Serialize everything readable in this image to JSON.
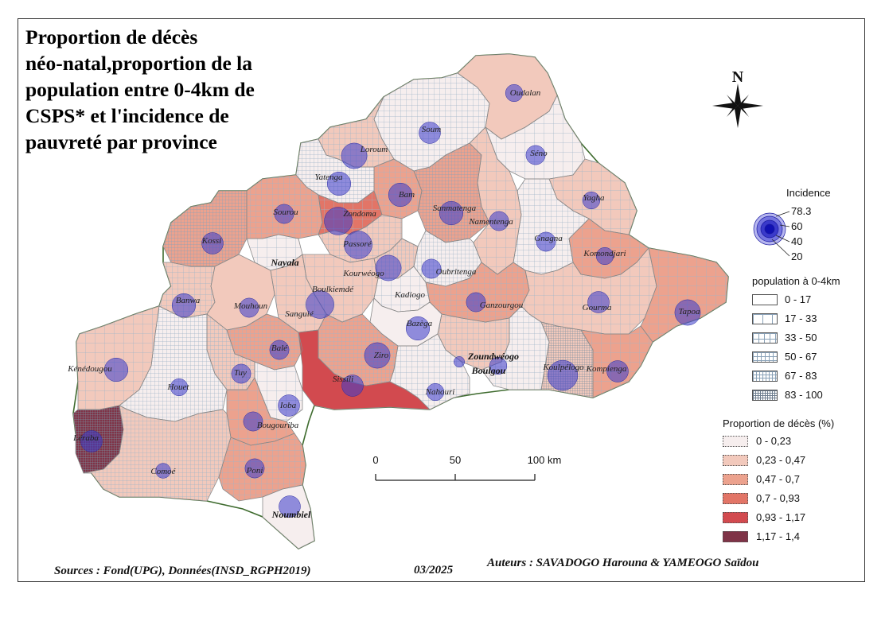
{
  "title": "Proportion de décès\nnéo-natal,proportion de la\npopulation entre 0-4km de\nCSPS* et l'incidence de\npauvreté par province",
  "north_label": "N",
  "legend": {
    "incidence": {
      "title": "Incidence",
      "values": [
        "78.3",
        "60",
        "40",
        "20"
      ],
      "color": "#3a3acc"
    },
    "population": {
      "title": "population à 0-4km",
      "classes": [
        {
          "label": "0 - 17",
          "grid": 0
        },
        {
          "label": "17 - 33",
          "grid": 1
        },
        {
          "label": "33 - 50",
          "grid": 2
        },
        {
          "label": "50 - 67",
          "grid": 3
        },
        {
          "label": "67 - 83",
          "grid": 4
        },
        {
          "label": "83 - 100",
          "grid": 5
        }
      ]
    },
    "deces": {
      "title": "Proportion de décès (%)",
      "classes": [
        {
          "label": "0 - 0,23",
          "color": "#f6eeee"
        },
        {
          "label": "0,23 - 0,47",
          "color": "#f2c9bc"
        },
        {
          "label": "0,47 - 0,7",
          "color": "#eca28e"
        },
        {
          "label": "0,7 - 0,93",
          "color": "#e27567"
        },
        {
          "label": "0,93 - 1,17",
          "color": "#d24a4f"
        },
        {
          "label": "1,17 - 1,4",
          "color": "#7f3347"
        }
      ]
    }
  },
  "scale": {
    "labels": [
      "0",
      "50",
      "100 km"
    ]
  },
  "footer": {
    "sources": "Sources : Fond(UPG), Données(INSD_RGPH2019)",
    "date": "03/2025",
    "authors": "Auteurs : SAVADOGO Harouna & YAMEOGO Saïdou"
  },
  "provinces": [
    {
      "name": "Oudalan",
      "deces": 1,
      "incidence": 25
    },
    {
      "name": "Soum",
      "deces": 0,
      "incidence": 35
    },
    {
      "name": "Séno",
      "deces": 0,
      "incidence": 30
    },
    {
      "name": "Loroum",
      "deces": 1,
      "incidence": 45
    },
    {
      "name": "Yatenga",
      "deces": 0,
      "incidence": 40
    },
    {
      "name": "Bam",
      "deces": 2,
      "incidence": 40
    },
    {
      "name": "Sanmatenga",
      "deces": 2,
      "incidence": 40
    },
    {
      "name": "Namentenga",
      "deces": 1,
      "incidence": 30
    },
    {
      "name": "Yagha",
      "deces": 1,
      "incidence": 25
    },
    {
      "name": "Sourou",
      "deces": 2,
      "incidence": 30
    },
    {
      "name": "Zondoma",
      "deces": 3,
      "incidence": 50
    },
    {
      "name": "Kossi",
      "deces": 2,
      "incidence": 35
    },
    {
      "name": "Passoré",
      "deces": 1,
      "incidence": 50
    },
    {
      "name": "Gnagna",
      "deces": 0,
      "incidence": 30
    },
    {
      "name": "Komondjari",
      "deces": 2,
      "incidence": 25
    },
    {
      "name": "Nayala",
      "deces": 0,
      "incidence": 0
    },
    {
      "name": "Kourwéogo",
      "deces": 1,
      "incidence": 45
    },
    {
      "name": "Oubritenga",
      "deces": 0,
      "incidence": 30
    },
    {
      "name": "Banwa",
      "deces": 1,
      "incidence": 40
    },
    {
      "name": "Mouhoun",
      "deces": 1,
      "incidence": 30
    },
    {
      "name": "Boulkiemdé",
      "deces": 1,
      "incidence": 50
    },
    {
      "name": "Sanguié",
      "deces": 1,
      "incidence": 30
    },
    {
      "name": "Kadiogo",
      "deces": 0,
      "incidence": 0
    },
    {
      "name": "Ganzourgou",
      "deces": 2,
      "incidence": 30
    },
    {
      "name": "Gourma",
      "deces": 1,
      "incidence": 35
    },
    {
      "name": "Tapoa",
      "deces": 2,
      "incidence": 45
    },
    {
      "name": "Bazèga",
      "deces": 0,
      "incidence": 40
    },
    {
      "name": "Balé",
      "deces": 2,
      "incidence": 30
    },
    {
      "name": "Zoundwéogo",
      "deces": 1,
      "incidence": 10
    },
    {
      "name": "Boulgou",
      "deces": 0,
      "incidence": 25
    },
    {
      "name": "Koulpélogo",
      "deces": 1,
      "incidence": 55
    },
    {
      "name": "Kompienga",
      "deces": 2,
      "incidence": 35
    },
    {
      "name": "Ziro",
      "deces": 2,
      "incidence": 45
    },
    {
      "name": "Sissili",
      "deces": 4,
      "incidence": 35
    },
    {
      "name": "Nahouri",
      "deces": 0,
      "incidence": 25
    },
    {
      "name": "Kénédougou",
      "deces": 1,
      "incidence": 40
    },
    {
      "name": "Tuy",
      "deces": 1,
      "incidence": 30
    },
    {
      "name": "Houet",
      "deces": 0,
      "incidence": 25
    },
    {
      "name": "Ioba",
      "deces": 0,
      "incidence": 35
    },
    {
      "name": "Bougouriba",
      "deces": 2,
      "incidence": 30
    },
    {
      "name": "Léraba",
      "deces": 5,
      "incidence": 35
    },
    {
      "name": "Comoé",
      "deces": 1,
      "incidence": 20
    },
    {
      "name": "Poni",
      "deces": 2,
      "incidence": 30
    },
    {
      "name": "Noumbiel",
      "deces": 0,
      "incidence": 35
    }
  ]
}
